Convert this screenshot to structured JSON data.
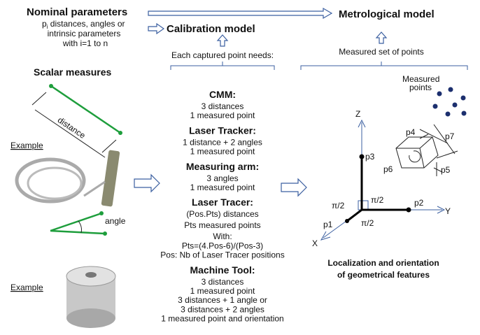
{
  "nominal": {
    "title": "Nominal parameters",
    "p": "p",
    "sub": "i",
    "line1": " distances, angles or",
    "line2": "intrinsic parameters",
    "line3": "with i=1 to n"
  },
  "calibration_model": "Calibration model",
  "metrological_model": "Metrological model",
  "each_point": "Each captured point needs:",
  "measured_set": "Measured set of points",
  "scalar": {
    "title": "Scalar measures",
    "distance": "distance",
    "angle": "angle",
    "example1": "Example",
    "example2": "Example"
  },
  "instruments": [
    {
      "name": "CMM:",
      "lines": [
        {
          "text": "3 distances",
          "color": "#1e9e3c"
        },
        {
          "text": "1 measured point",
          "color": "#2b4f8e"
        }
      ]
    },
    {
      "name": "Laser Tracker:",
      "lines": [
        {
          "text": "1 distance + 2 angles",
          "color": "#1e9e3c"
        },
        {
          "text": "1 measured point",
          "color": "#2b4f8e"
        }
      ]
    },
    {
      "name": "Measuring arm:",
      "lines": [
        {
          "text": "3 angles",
          "color": "#1e9e3c"
        },
        {
          "text": "1 measured point",
          "color": "#2b4f8e"
        }
      ]
    },
    {
      "name": "Laser Tracer:",
      "lines": [
        {
          "text": "(Pos.Pts) distances",
          "color": "#1e9e3c"
        },
        {
          "text": "Pts measured points",
          "color": "#2b4f8e"
        },
        {
          "text": "With:",
          "color": "#1b1b2a"
        },
        {
          "text": "Pts=(4.Pos-6)/(Pos-3)",
          "color": "#1b1b2a"
        },
        {
          "text": "Pos: Nb of Laser Tracer positions",
          "color": "#1b1b2a"
        }
      ]
    },
    {
      "name": "Machine Tool:",
      "lines": [
        {
          "text": "3 distances",
          "color": "#1e9e3c"
        },
        {
          "text": "1 measured point",
          "color": "#2b4f8e"
        },
        {
          "text": "3 distances + 1 angle or",
          "color": "#1e9e3c"
        },
        {
          "text": "3 distances + 2 angles",
          "color": "#1e9e3c"
        },
        {
          "text": "1 measured point and orientation",
          "color": "#2b4f8e"
        }
      ]
    }
  ],
  "frame": {
    "z": "Z",
    "y": "Y",
    "x": "X",
    "p1": "p1",
    "p2": "p2",
    "p3": "p3",
    "p4": "p4",
    "p5": "p5",
    "p6": "p6",
    "p7": "p7",
    "right_angle1": "π/2",
    "right_angle2": "π/2",
    "right_angle3": "π/2",
    "measured_points1": "Measured",
    "measured_points2": "points"
  },
  "features": {
    "line1": "Localization and orientation",
    "line2": "of geometrical features"
  }
}
